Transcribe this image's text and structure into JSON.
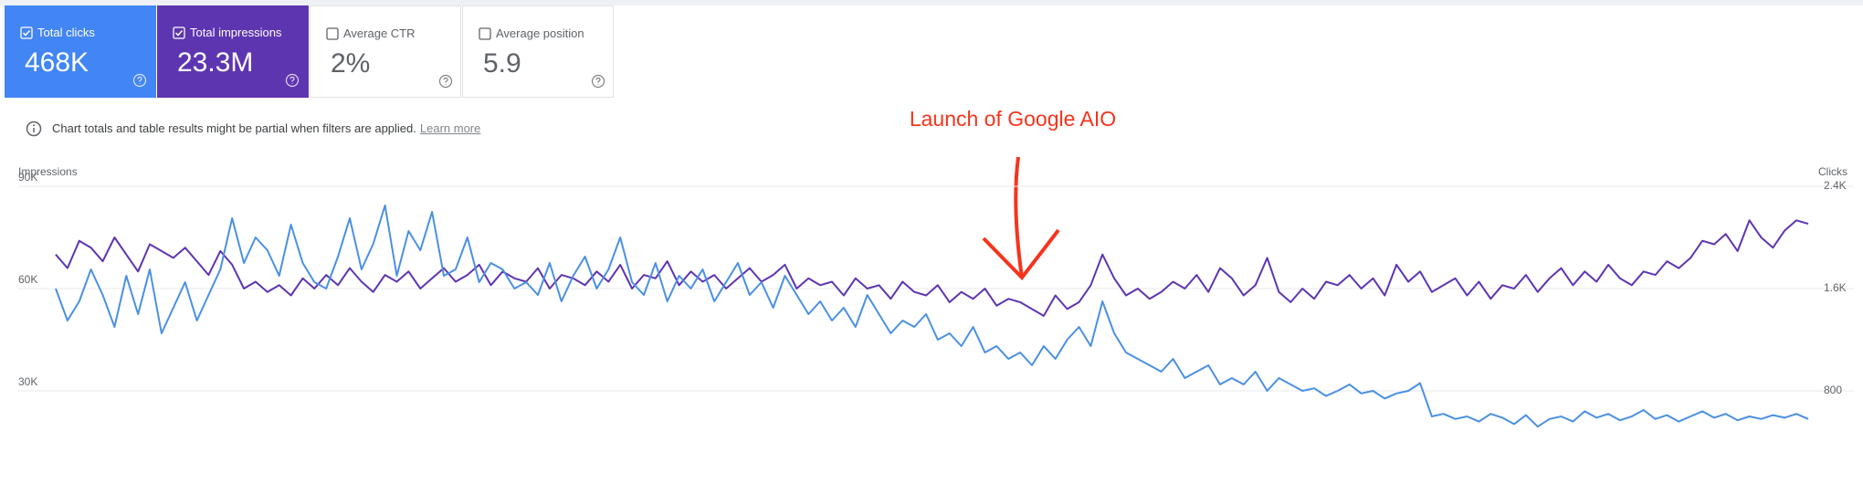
{
  "cards": [
    {
      "label": "Total clicks",
      "value": "468K",
      "checked": true,
      "color": "#4285f4"
    },
    {
      "label": "Total impressions",
      "value": "23.3M",
      "checked": true,
      "color": "#5e35b1"
    },
    {
      "label": "Average CTR",
      "value": "2%",
      "checked": false
    },
    {
      "label": "Average position",
      "value": "5.9",
      "checked": false
    }
  ],
  "notice": {
    "text": "Chart totals and table results might be partial when filters are applied.",
    "link": "Learn more"
  },
  "chart_data": {
    "type": "line",
    "annotation": "Launch of Google AIO",
    "ylabel": "Impressions",
    "y2label": "Clicks",
    "ylim": [
      0,
      90000
    ],
    "yticks": [
      {
        "value": 30000,
        "label": "30K"
      },
      {
        "value": 60000,
        "label": "60K"
      },
      {
        "value": 90000,
        "label": "90K"
      }
    ],
    "y2lim": [
      0,
      2400
    ],
    "y2ticks": [
      800,
      {
        "value": 1600,
        "label": "1.6K"
      },
      {
        "value": 2400,
        "label": "2.4K"
      }
    ],
    "grid": true,
    "series": [
      {
        "color": "#5e35b1",
        "values": [
          70000,
          66000,
          74000,
          72000,
          68000,
          75000,
          70000,
          65000,
          73000,
          71000,
          69000,
          72000,
          68000,
          64000,
          71000,
          67000,
          60000,
          62000,
          59000,
          61000,
          58000,
          63000,
          60000,
          64000,
          61000,
          66000,
          62000,
          59000,
          64000,
          62000,
          65000,
          60000,
          63000,
          66000,
          62000,
          64000,
          67000,
          61000,
          65000,
          63000,
          62000,
          66000,
          60000,
          64000,
          63000,
          61000,
          65000,
          62000,
          67000,
          60000,
          64000,
          63000,
          68000,
          61000,
          65000,
          62000,
          64000,
          60000,
          63000,
          66000,
          62000,
          64000,
          67000,
          60000,
          63000,
          61000,
          62000,
          58000,
          63000,
          60000,
          61000,
          57000,
          62000,
          59000,
          58000,
          61000,
          56000,
          59000,
          57000,
          60000,
          55000,
          57000,
          56000,
          54000,
          52000,
          58000,
          54000,
          56000,
          61000,
          70000,
          63000,
          58000,
          60000,
          57000,
          59000,
          62000,
          60000,
          64000,
          59000,
          66000,
          63000,
          58000,
          61000,
          69000,
          59000,
          56000,
          60000,
          57000,
          62000,
          61000,
          64000,
          60000,
          63000,
          58000,
          67000,
          62000,
          65000,
          59000,
          61000,
          63000,
          58000,
          62000,
          57000,
          61000,
          60000,
          64000,
          59000,
          63000,
          66000,
          61000,
          65000,
          62000,
          67000,
          63000,
          61000,
          65000,
          64000,
          68000,
          66000,
          69000,
          74000,
          73000,
          76000,
          71000,
          80000,
          75000,
          72000,
          77000,
          80000,
          79000
        ]
      },
      {
        "color": "#4a90e2",
        "axis": "y2",
        "values": [
          1600,
          1350,
          1500,
          1750,
          1550,
          1300,
          1700,
          1400,
          1750,
          1250,
          1450,
          1650,
          1350,
          1550,
          1750,
          2150,
          1800,
          2000,
          1900,
          1700,
          2100,
          1800,
          1650,
          1600,
          1850,
          2150,
          1750,
          1950,
          2250,
          1700,
          2050,
          1900,
          2200,
          1700,
          1750,
          2000,
          1650,
          1800,
          1750,
          1600,
          1650,
          1550,
          1800,
          1500,
          1700,
          1850,
          1600,
          1750,
          2000,
          1650,
          1550,
          1800,
          1500,
          1700,
          1600,
          1750,
          1500,
          1650,
          1800,
          1550,
          1650,
          1450,
          1700,
          1550,
          1400,
          1500,
          1350,
          1450,
          1300,
          1550,
          1400,
          1250,
          1350,
          1300,
          1400,
          1200,
          1250,
          1150,
          1300,
          1100,
          1150,
          1050,
          1100,
          1000,
          1150,
          1050,
          1200,
          1300,
          1150,
          1500,
          1250,
          1100,
          1050,
          1000,
          950,
          1050,
          900,
          950,
          1000,
          850,
          900,
          850,
          950,
          800,
          900,
          850,
          800,
          820,
          760,
          800,
          850,
          780,
          800,
          740,
          780,
          800,
          860,
          600,
          620,
          580,
          600,
          560,
          620,
          590,
          540,
          610,
          520,
          580,
          600,
          560,
          640,
          590,
          620,
          570,
          600,
          650,
          580,
          610,
          560,
          600,
          640,
          590,
          620,
          570,
          600,
          580,
          610,
          590,
          620,
          580
        ]
      }
    ]
  }
}
